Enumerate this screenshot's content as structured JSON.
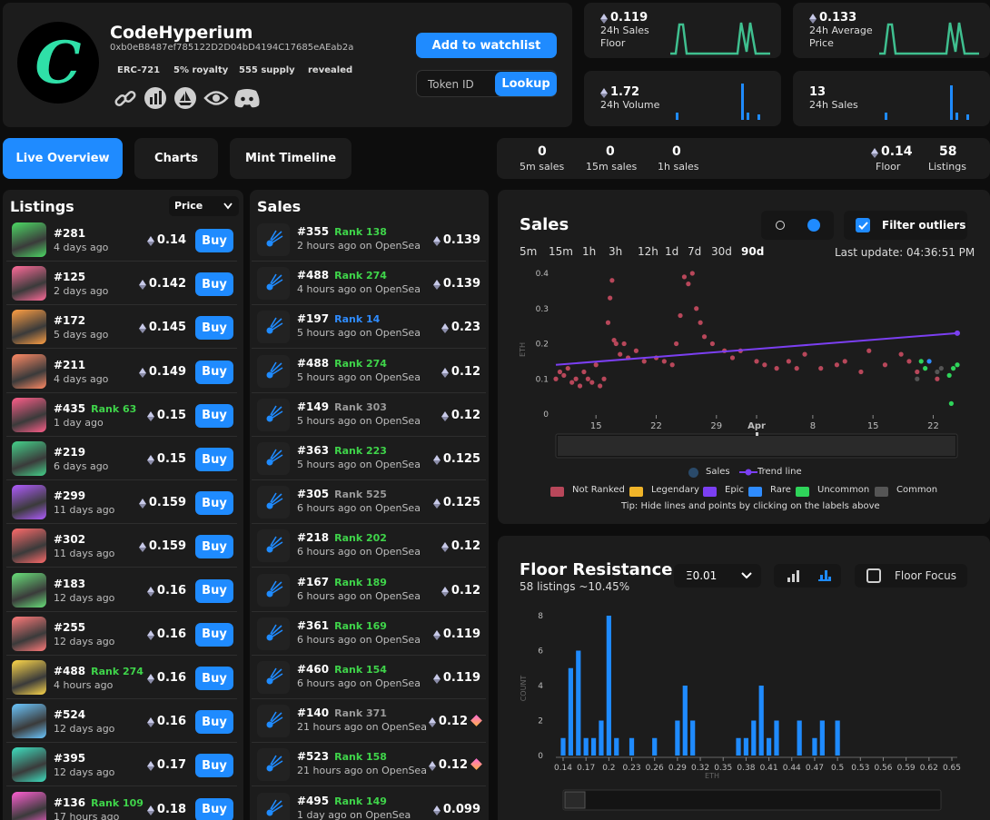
{
  "collection": {
    "logo_letter": "C",
    "name": "CodeHyperium",
    "address": "0xb0eB8487ef785122D2D04bD4194C17685eAEab2a",
    "tags": [
      "ERC-721",
      "5% royalty",
      "555 supply",
      "revealed"
    ],
    "social_icons": [
      "link-icon",
      "chart-icon",
      "opensea-icon",
      "eye-icon",
      "discord-icon"
    ]
  },
  "actions": {
    "watchlist": "Add to watchlist",
    "token_id_placeholder": "Token ID",
    "lookup": "Lookup"
  },
  "stats": [
    {
      "value": "0.119",
      "label1": "24h Sales",
      "label2": "Floor"
    },
    {
      "value": "0.133",
      "label1": "24h Average",
      "label2": "Price"
    },
    {
      "value": "1.72",
      "label1": "24h Volume",
      "label2": ""
    },
    {
      "value": "13",
      "label1": "24h Sales",
      "label2": ""
    }
  ],
  "tabs": {
    "live": "Live Overview",
    "charts": "Charts",
    "mint": "Mint Timeline"
  },
  "summary": {
    "s5m": "0",
    "s5m_label": "5m sales",
    "s15m": "0",
    "s15m_label": "15m sales",
    "s1h": "0",
    "s1h_label": "1h sales",
    "floor": "0.14",
    "floor_label": "Floor",
    "listings": "58",
    "listings_label": "Listings"
  },
  "listings": {
    "title": "Listings",
    "sort": "Price",
    "buy_label": "Buy",
    "items": [
      {
        "id": "#281",
        "rank": "",
        "time": "4 days ago",
        "price": "0.14",
        "color": "#4cd964"
      },
      {
        "id": "#125",
        "rank": "",
        "time": "2 days ago",
        "price": "0.142",
        "color": "#ff6b9a"
      },
      {
        "id": "#172",
        "rank": "",
        "time": "5 days ago",
        "price": "0.145",
        "color": "#ff9f43"
      },
      {
        "id": "#211",
        "rank": "",
        "time": "4 days ago",
        "price": "0.149",
        "color": "#ff8a65"
      },
      {
        "id": "#435",
        "rank": "Rank 63",
        "time": "1 day ago",
        "price": "0.15",
        "color": "#ff5e8a"
      },
      {
        "id": "#219",
        "rank": "",
        "time": "6 days ago",
        "price": "0.15",
        "color": "#44d18a"
      },
      {
        "id": "#299",
        "rank": "",
        "time": "11 days ago",
        "price": "0.159",
        "color": "#b05cff"
      },
      {
        "id": "#302",
        "rank": "",
        "time": "11 days ago",
        "price": "0.159",
        "color": "#ff6b6b"
      },
      {
        "id": "#183",
        "rank": "",
        "time": "12 days ago",
        "price": "0.16",
        "color": "#69e07a"
      },
      {
        "id": "#255",
        "rank": "",
        "time": "12 days ago",
        "price": "0.16",
        "color": "#ff7a7a"
      },
      {
        "id": "#488",
        "rank": "Rank 274",
        "time": "4 hours ago",
        "price": "0.16",
        "color": "#ffd84a"
      },
      {
        "id": "#524",
        "rank": "",
        "time": "12 days ago",
        "price": "0.16",
        "color": "#6cc7ff"
      },
      {
        "id": "#395",
        "rank": "",
        "time": "12 days ago",
        "price": "0.17",
        "color": "#3ee0c0"
      },
      {
        "id": "#136",
        "rank": "Rank 109",
        "time": "17 hours ago",
        "price": "0.18",
        "color": "#ff5fd2"
      }
    ]
  },
  "sales": {
    "title": "Sales",
    "items": [
      {
        "id": "#355",
        "rank": "Rank 138",
        "rank_color": "#3fd44a",
        "time": "2 hours ago on OpenSea",
        "price": "0.139",
        "gem": false
      },
      {
        "id": "#488",
        "rank": "Rank 274",
        "rank_color": "#3fd44a",
        "time": "4 hours ago on OpenSea",
        "price": "0.139",
        "gem": false
      },
      {
        "id": "#197",
        "rank": "Rank 14",
        "rank_color": "#2f8cff",
        "time": "5 hours ago on OpenSea",
        "price": "0.23",
        "gem": false
      },
      {
        "id": "#488",
        "rank": "Rank 274",
        "rank_color": "#3fd44a",
        "time": "5 hours ago on OpenSea",
        "price": "0.12",
        "gem": false
      },
      {
        "id": "#149",
        "rank": "Rank 303",
        "rank_color": "#9a9a9a",
        "time": "5 hours ago on OpenSea",
        "price": "0.12",
        "gem": false
      },
      {
        "id": "#363",
        "rank": "Rank 223",
        "rank_color": "#3fd44a",
        "time": "5 hours ago on OpenSea",
        "price": "0.125",
        "gem": false
      },
      {
        "id": "#305",
        "rank": "Rank 525",
        "rank_color": "#9a9a9a",
        "time": "6 hours ago on OpenSea",
        "price": "0.125",
        "gem": false
      },
      {
        "id": "#218",
        "rank": "Rank 202",
        "rank_color": "#3fd44a",
        "time": "6 hours ago on OpenSea",
        "price": "0.12",
        "gem": false
      },
      {
        "id": "#167",
        "rank": "Rank 189",
        "rank_color": "#3fd44a",
        "time": "6 hours ago on OpenSea",
        "price": "0.12",
        "gem": false
      },
      {
        "id": "#361",
        "rank": "Rank 169",
        "rank_color": "#3fd44a",
        "time": "6 hours ago on OpenSea",
        "price": "0.119",
        "gem": false
      },
      {
        "id": "#460",
        "rank": "Rank 154",
        "rank_color": "#3fd44a",
        "time": "6 hours ago on OpenSea",
        "price": "0.119",
        "gem": false
      },
      {
        "id": "#140",
        "rank": "Rank 371",
        "rank_color": "#9a9a9a",
        "time": "21 hours ago on OpenSea",
        "price": "0.12",
        "gem": true
      },
      {
        "id": "#523",
        "rank": "Rank 158",
        "rank_color": "#3fd44a",
        "time": "21 hours ago on OpenSea",
        "price": "0.12",
        "gem": true
      },
      {
        "id": "#495",
        "rank": "Rank 149",
        "rank_color": "#3fd44a",
        "time": "1 day ago on OpenSea",
        "price": "0.099",
        "gem": false
      }
    ]
  },
  "sales_chart": {
    "title": "Sales",
    "filter_label": "Filter outliers",
    "ranges": [
      "5m",
      "15m",
      "1h",
      "3h",
      "12h",
      "1d",
      "7d",
      "30d",
      "90d"
    ],
    "active_range": "90d",
    "last_update": "Last update: 04:36:51 PM",
    "legend_top": [
      "Sales",
      "Trend line"
    ],
    "legend_bottom": [
      {
        "name": "Not Ranked",
        "color": "#b8475a"
      },
      {
        "name": "Legendary",
        "color": "#f0b429"
      },
      {
        "name": "Epic",
        "color": "#7b3ff2"
      },
      {
        "name": "Rare",
        "color": "#2f8cff"
      },
      {
        "name": "Uncommon",
        "color": "#2fd45a"
      },
      {
        "name": "Common",
        "color": "#555555"
      }
    ],
    "tip": "Tip: Hide lines and points by clicking on the labels above"
  },
  "floor_resistance": {
    "title": "Floor Resistance",
    "subtitle": "58 listings ~10.45%",
    "step": "Ξ0.01",
    "floor_focus": "Floor Focus"
  },
  "chart_data": [
    {
      "type": "scatter",
      "title": "Sales",
      "ylabel": "ETH",
      "ylim": [
        0,
        0.4
      ],
      "y_ticks": [
        "0.4",
        "0.3",
        "0.2",
        "0.1",
        "0"
      ],
      "x_ticks": [
        "15",
        "22",
        "29",
        "Apr",
        "8",
        "15",
        "22"
      ],
      "trend": {
        "start": 0.14,
        "end": 0.23
      },
      "series": [
        {
          "name": "Not Ranked",
          "points": [
            [
              0.0,
              0.1
            ],
            [
              0.01,
              0.12
            ],
            [
              0.02,
              0.11
            ],
            [
              0.03,
              0.13
            ],
            [
              0.04,
              0.09
            ],
            [
              0.05,
              0.1
            ],
            [
              0.06,
              0.08
            ],
            [
              0.07,
              0.12
            ],
            [
              0.08,
              0.1
            ],
            [
              0.09,
              0.09
            ],
            [
              0.1,
              0.14
            ],
            [
              0.11,
              0.08
            ],
            [
              0.12,
              0.1
            ],
            [
              0.13,
              0.26
            ],
            [
              0.135,
              0.33
            ],
            [
              0.14,
              0.38
            ],
            [
              0.145,
              0.21
            ],
            [
              0.15,
              0.2
            ],
            [
              0.16,
              0.17
            ],
            [
              0.17,
              0.2
            ],
            [
              0.18,
              0.16
            ],
            [
              0.2,
              0.18
            ],
            [
              0.22,
              0.15
            ],
            [
              0.25,
              0.16
            ],
            [
              0.27,
              0.15
            ],
            [
              0.29,
              0.14
            ],
            [
              0.3,
              0.2
            ],
            [
              0.31,
              0.28
            ],
            [
              0.32,
              0.39
            ],
            [
              0.33,
              0.37
            ],
            [
              0.34,
              0.4
            ],
            [
              0.35,
              0.3
            ],
            [
              0.36,
              0.26
            ],
            [
              0.37,
              0.22
            ],
            [
              0.39,
              0.2
            ],
            [
              0.42,
              0.18
            ],
            [
              0.44,
              0.16
            ],
            [
              0.46,
              0.18
            ],
            [
              0.5,
              0.15
            ],
            [
              0.52,
              0.14
            ],
            [
              0.55,
              0.13
            ],
            [
              0.58,
              0.15
            ],
            [
              0.6,
              0.13
            ],
            [
              0.62,
              0.17
            ],
            [
              0.66,
              0.13
            ],
            [
              0.7,
              0.14
            ],
            [
              0.72,
              0.15
            ],
            [
              0.76,
              0.12
            ],
            [
              0.78,
              0.18
            ],
            [
              0.82,
              0.14
            ],
            [
              0.86,
              0.17
            ],
            [
              0.88,
              0.15
            ],
            [
              0.9,
              0.12
            ],
            [
              0.95,
              0.1
            ]
          ]
        },
        {
          "name": "Uncommon",
          "points": [
            [
              0.91,
              0.15
            ],
            [
              0.92,
              0.13
            ],
            [
              0.98,
              0.11
            ],
            [
              0.99,
              0.13
            ],
            [
              1.0,
              0.14
            ],
            [
              0.985,
              0.03
            ]
          ]
        },
        {
          "name": "Rare",
          "points": [
            [
              0.93,
              0.15
            ],
            [
              1.0,
              0.23
            ]
          ]
        },
        {
          "name": "Common",
          "points": [
            [
              0.9,
              0.1
            ],
            [
              0.95,
              0.12
            ],
            [
              0.96,
              0.13
            ]
          ]
        }
      ]
    },
    {
      "type": "bar",
      "title": "Floor Resistance",
      "ylabel": "COUNT",
      "xlabel": "ETH",
      "ylim": [
        0,
        8
      ],
      "y_ticks": [
        "8",
        "6",
        "4",
        "2",
        "0"
      ],
      "x_ticks": [
        "0.14",
        "0.17",
        "0.2",
        "0.23",
        "0.26",
        "0.29",
        "0.32",
        "0.35",
        "0.38",
        "0.41",
        "0.44",
        "0.47",
        "0.5",
        "0.53",
        "0.56",
        "0.59",
        "0.62",
        "0.65"
      ],
      "bins": [
        0.14,
        0.15,
        0.16,
        0.17,
        0.18,
        0.19,
        0.2,
        0.21,
        0.22,
        0.23,
        0.24,
        0.25,
        0.26,
        0.27,
        0.28,
        0.29,
        0.3,
        0.31,
        0.32,
        0.33,
        0.34,
        0.35,
        0.36,
        0.37,
        0.38,
        0.39,
        0.4,
        0.41,
        0.42,
        0.43,
        0.44,
        0.45,
        0.46,
        0.47,
        0.48,
        0.49,
        0.5
      ],
      "values": [
        1,
        5,
        6,
        1,
        1,
        2,
        8,
        1,
        0,
        1,
        0,
        0,
        1,
        0,
        0,
        2,
        4,
        2,
        0,
        0,
        0,
        0,
        0,
        1,
        1,
        2,
        4,
        1,
        2,
        0,
        0,
        2,
        0,
        1,
        2,
        0,
        2
      ]
    }
  ]
}
